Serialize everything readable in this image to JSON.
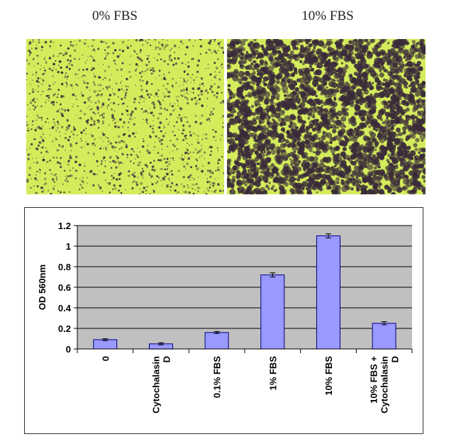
{
  "panels": [
    {
      "title": "0% FBS",
      "description": "micrograph-low-staining"
    },
    {
      "title": "10% FBS",
      "description": "micrograph-high-staining"
    }
  ],
  "colors": {
    "plot_background": "#c0c0c0",
    "bar_fill": "#9999ff",
    "bar_stroke": "#000080",
    "micrograph_green": "#d4ec5c",
    "micrograph_dark": "#3a2a3a"
  },
  "chart_data": {
    "type": "bar",
    "title": "",
    "xlabel": "",
    "ylabel": "OD 560nm",
    "ylim": [
      0,
      1.2
    ],
    "yticks": [
      "0",
      "0.2",
      "0.4",
      "0.6",
      "0.8",
      "1",
      "1.2"
    ],
    "grid": true,
    "legend": "none",
    "categories": [
      [
        "0"
      ],
      [
        "Cytochalasin",
        "D"
      ],
      [
        "0.1% FBS"
      ],
      [
        "1% FBS"
      ],
      [
        "10% FBS"
      ],
      [
        "10% FBS +",
        "Cytochalasin",
        "D"
      ]
    ],
    "values": [
      0.09,
      0.05,
      0.16,
      0.72,
      1.1,
      0.25
    ],
    "errors": [
      0.01,
      0.01,
      0.01,
      0.02,
      0.02,
      0.015
    ]
  }
}
